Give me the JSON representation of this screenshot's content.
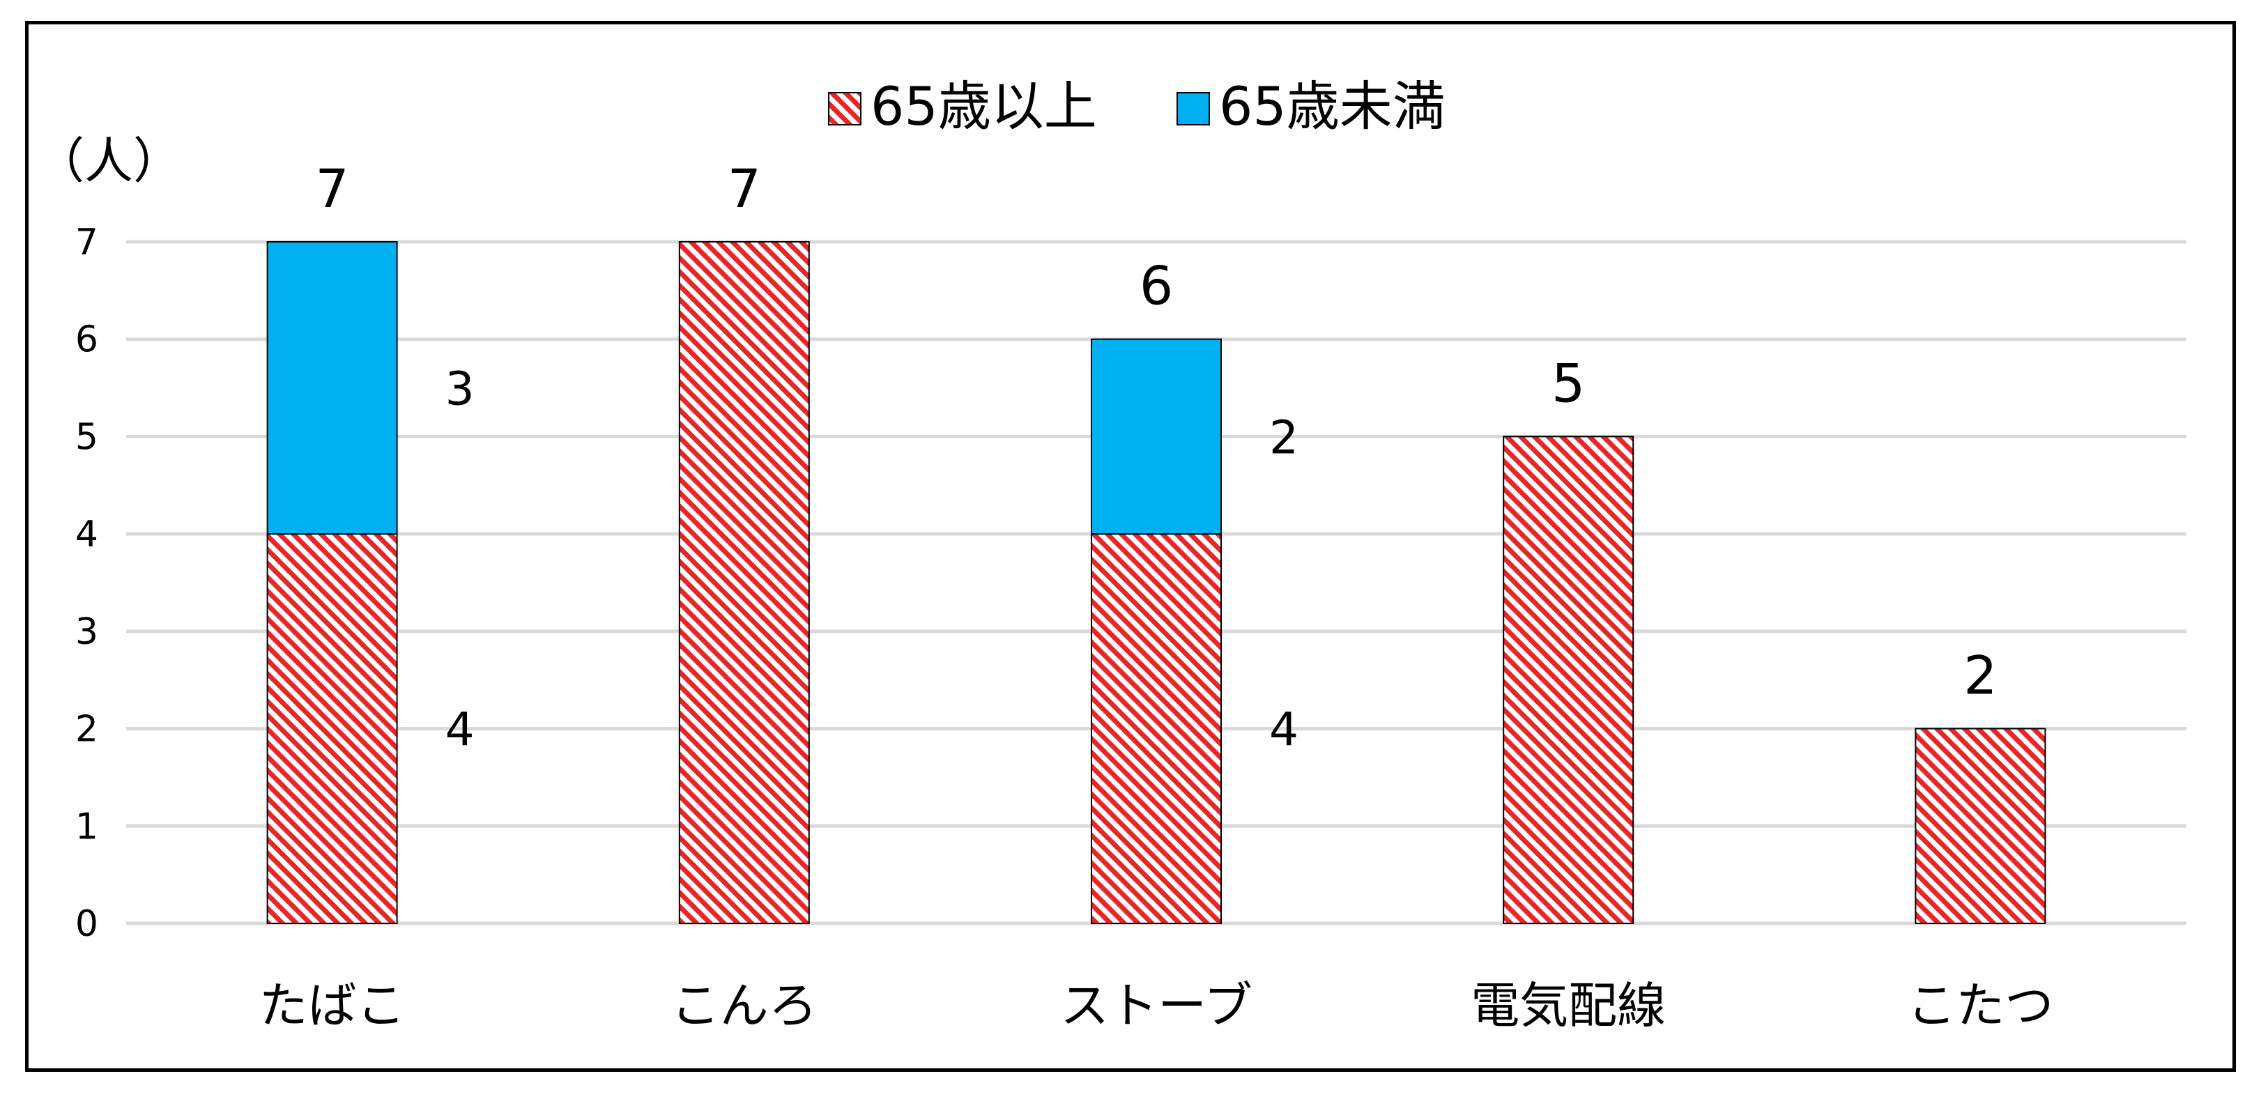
{
  "chart_data": {
    "type": "bar",
    "stacked": true,
    "unit_label": "（人）",
    "categories": [
      "たばこ",
      "こんろ",
      "ストーブ",
      "電気配線",
      "こたつ"
    ],
    "series": [
      {
        "name": "65歳以上",
        "values": [
          4,
          7,
          4,
          5,
          2
        ],
        "color": "#e8262a",
        "pattern": "diagonal-hatch"
      },
      {
        "name": "65歳未満",
        "values": [
          3,
          0,
          2,
          0,
          0
        ],
        "color": "#00b0f0",
        "pattern": "solid"
      }
    ],
    "totals": [
      7,
      7,
      6,
      5,
      2
    ],
    "segment_labels": [
      {
        "category": "たばこ",
        "series": "65歳以上",
        "text": "4"
      },
      {
        "category": "たばこ",
        "series": "65歳未満",
        "text": "3"
      },
      {
        "category": "ストーブ",
        "series": "65歳以上",
        "text": "4"
      },
      {
        "category": "ストーブ",
        "series": "65歳未満",
        "text": "2"
      }
    ],
    "yticks": [
      "0",
      "1",
      "2",
      "3",
      "4",
      "5",
      "6",
      "7"
    ],
    "ylim": [
      0,
      7
    ],
    "grid": true,
    "legend_position": "top-center",
    "gridline_color": "#d9d9d9"
  }
}
